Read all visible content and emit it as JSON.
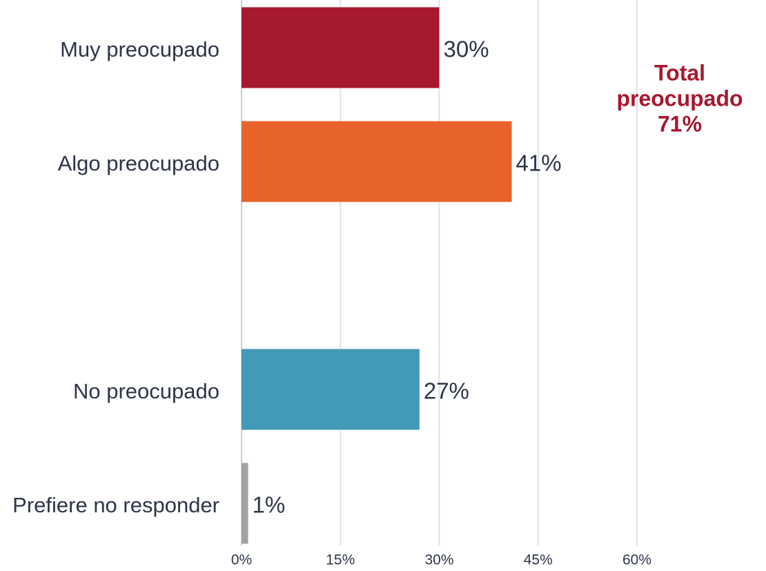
{
  "chart_data": {
    "type": "bar",
    "orientation": "horizontal",
    "categories": [
      "Muy preocupado",
      "Algo preocupado",
      null,
      "No preocupado",
      "Prefiere no responder"
    ],
    "values": [
      30,
      41,
      null,
      27,
      1
    ],
    "value_labels": [
      "30%",
      "41%",
      null,
      "27%",
      "1%"
    ],
    "colors": [
      "#a6192e",
      "#e8632b",
      null,
      "#4399b8",
      "#a0a2a5"
    ],
    "xlim": [
      0,
      80
    ],
    "xticks": [
      {
        "value": 0,
        "label": "0%"
      },
      {
        "value": 15,
        "label": "15%"
      },
      {
        "value": 30,
        "label": "30%"
      },
      {
        "value": 45,
        "label": "45%"
      },
      {
        "value": 60,
        "label": "60%"
      }
    ],
    "grid": true,
    "annotation": {
      "lines": [
        "Total",
        "preocupado",
        "71%"
      ],
      "color": "#a6192e"
    }
  }
}
